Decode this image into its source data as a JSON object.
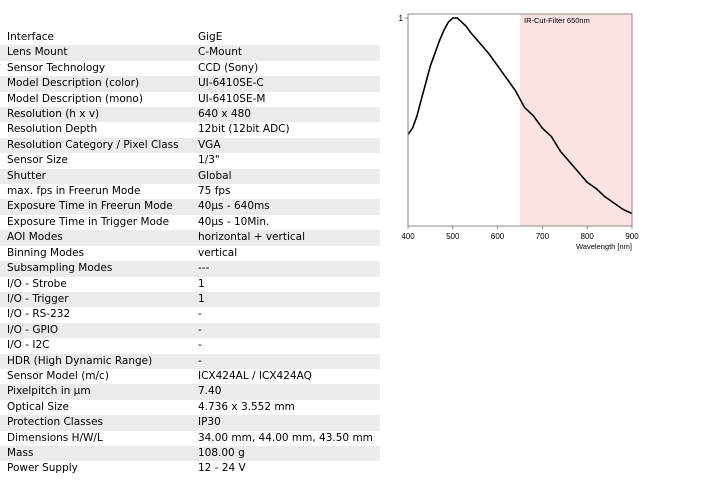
{
  "specs": [
    {
      "label": "Interface",
      "value": "GigE"
    },
    {
      "label": "Lens Mount",
      "value": "C-Mount"
    },
    {
      "label": "Sensor Technology",
      "value": "CCD (Sony)"
    },
    {
      "label": "Model Description (color)",
      "value": "UI-6410SE-C"
    },
    {
      "label": "Model Description (mono)",
      "value": "UI-6410SE-M"
    },
    {
      "label": "Resolution (h x v)",
      "value": "640 x 480"
    },
    {
      "label": "Resolution Depth",
      "value": "12bit (12bit ADC)"
    },
    {
      "label": "Resolution Category / Pixel Class",
      "value": "VGA"
    },
    {
      "label": "Sensor Size",
      "value": "1/3\""
    },
    {
      "label": "Shutter",
      "value": "Global"
    },
    {
      "label": "max. fps in Freerun Mode",
      "value": "75 fps"
    },
    {
      "label": "Exposure Time in Freerun Mode",
      "value": "40µs - 640ms"
    },
    {
      "label": "Exposure Time in Trigger Mode",
      "value": "40µs - 10Min."
    },
    {
      "label": "AOI Modes",
      "value": "horizontal + vertical"
    },
    {
      "label": "Binning Modes",
      "value": "vertical"
    },
    {
      "label": "Subsampling Modes",
      "value": "---"
    },
    {
      "label": "I/O - Strobe",
      "value": "1"
    },
    {
      "label": "I/O - Trigger",
      "value": "1"
    },
    {
      "label": "I/O - RS-232",
      "value": "-"
    },
    {
      "label": "I/O - GPIO",
      "value": "-"
    },
    {
      "label": "I/O - I2C",
      "value": "-"
    },
    {
      "label": "HDR (High Dynamic Range)",
      "value": "-"
    },
    {
      "label": "Sensor Model (m/c)",
      "value": "ICX424AL / ICX424AQ"
    },
    {
      "label": "Pixelpitch in µm",
      "value": "7.40"
    },
    {
      "label": "Optical Size",
      "value": "4.736 x 3.552 mm"
    },
    {
      "label": "Protection Classes",
      "value": "IP30"
    },
    {
      "label": "Dimensions H/W/L",
      "value": "34.00 mm, 44.00 mm, 43.50 mm"
    },
    {
      "label": "Mass",
      "value": "108.00 g"
    },
    {
      "label": "Power Supply",
      "value": "12 - 24 V"
    }
  ],
  "chart_data": {
    "type": "line",
    "title": "",
    "xlabel": "Wavelength [nm]",
    "ylabel": "",
    "xlim": [
      400,
      900
    ],
    "ylim": [
      0,
      1
    ],
    "x_ticks": [
      "400",
      "500",
      "600",
      "700",
      "800",
      "900"
    ],
    "y_ticks": [
      "1"
    ],
    "grid": false,
    "annotation": {
      "text": "IR-Cut-Filter 650nm",
      "x_from": 650,
      "x_to": 900,
      "color": "#fde2e4"
    },
    "series": [
      {
        "color": "#000000",
        "x": [
          400,
          410,
          420,
          430,
          440,
          450,
          460,
          470,
          480,
          490,
          500,
          510,
          520,
          530,
          540,
          560,
          580,
          600,
          620,
          640,
          650,
          660,
          680,
          700,
          720,
          740,
          760,
          780,
          800,
          820,
          840,
          860,
          880,
          900
        ],
        "y": [
          0.44,
          0.47,
          0.53,
          0.61,
          0.69,
          0.77,
          0.83,
          0.89,
          0.94,
          0.98,
          1.0,
          1.0,
          0.98,
          0.96,
          0.93,
          0.88,
          0.83,
          0.77,
          0.71,
          0.65,
          0.61,
          0.57,
          0.53,
          0.47,
          0.43,
          0.36,
          0.31,
          0.26,
          0.21,
          0.18,
          0.14,
          0.11,
          0.08,
          0.06
        ]
      }
    ]
  }
}
